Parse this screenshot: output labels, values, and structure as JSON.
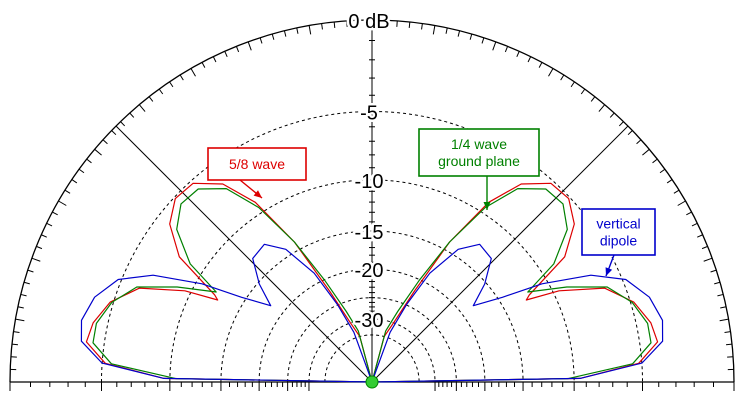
{
  "chart_data": {
    "type": "polar",
    "subtype": "elevation-pattern-half-plane",
    "angle_range_deg": [
      0,
      180
    ],
    "radial_unit": "dB",
    "radial_scale": "log (ARRL-style)",
    "ring_labels": [
      "0 dB",
      "-5",
      "-10",
      "-15",
      "-20",
      "-30"
    ],
    "ring_values_db": [
      0,
      -5,
      -10,
      -15,
      -20,
      -25,
      -30,
      -35
    ],
    "spoke_angles_deg": [
      45,
      90,
      135
    ],
    "series": [
      {
        "name": "5/8 wave",
        "color": "#dd0000",
        "label_lines": [
          "5/8 wave"
        ],
        "points": [
          [
            0,
            -60
          ],
          [
            1,
            -9.5
          ],
          [
            4,
            -5.2
          ],
          [
            8,
            -3.9
          ],
          [
            12,
            -4.1
          ],
          [
            17,
            -4.8
          ],
          [
            22,
            -6.3
          ],
          [
            26,
            -9.5
          ],
          [
            28,
            -12.5
          ],
          [
            29,
            -12.0
          ],
          [
            33,
            -7.8
          ],
          [
            38,
            -5.9
          ],
          [
            43,
            -5.1
          ],
          [
            48,
            -5.2
          ],
          [
            53,
            -6.5
          ],
          [
            57,
            -9.0
          ],
          [
            61,
            -14.0
          ],
          [
            65,
            -22.0
          ],
          [
            70,
            -30.0
          ],
          [
            75,
            -35.0
          ],
          [
            80,
            -60.0
          ],
          [
            90,
            -60.0
          ]
        ]
      },
      {
        "name": "1/4 wave ground plane",
        "color": "#008000",
        "label_lines": [
          "1/4 wave",
          "ground plane"
        ],
        "points": [
          [
            0,
            -60
          ],
          [
            1,
            -10.5
          ],
          [
            4,
            -5.6
          ],
          [
            8,
            -4.3
          ],
          [
            12,
            -4.3
          ],
          [
            17,
            -4.9
          ],
          [
            22,
            -6.1
          ],
          [
            26,
            -8.8
          ],
          [
            30,
            -12.0
          ],
          [
            33,
            -8.8
          ],
          [
            38,
            -6.5
          ],
          [
            43,
            -5.6
          ],
          [
            48,
            -5.7
          ],
          [
            53,
            -6.9
          ],
          [
            57,
            -9.5
          ],
          [
            61,
            -14.0
          ],
          [
            65,
            -20.0
          ],
          [
            70,
            -27.0
          ],
          [
            75,
            -33.0
          ],
          [
            80,
            -60.0
          ],
          [
            90,
            -60.0
          ]
        ]
      },
      {
        "name": "vertical dipole",
        "color": "#0000cc",
        "label_lines": [
          "vertical",
          "dipole"
        ],
        "points": [
          [
            0,
            -60
          ],
          [
            1,
            -9.5
          ],
          [
            4,
            -5.0
          ],
          [
            8,
            -3.6
          ],
          [
            12,
            -3.4
          ],
          [
            17,
            -3.8
          ],
          [
            22,
            -4.8
          ],
          [
            26,
            -6.8
          ],
          [
            30,
            -10.5
          ],
          [
            33,
            -14.5
          ],
          [
            37,
            -18.0
          ],
          [
            41,
            -15.2
          ],
          [
            46,
            -12.8
          ],
          [
            52,
            -12.5
          ],
          [
            57,
            -14.2
          ],
          [
            62,
            -18.5
          ],
          [
            66,
            -25.0
          ],
          [
            70,
            -33.0
          ],
          [
            74,
            -60.0
          ],
          [
            90,
            -60.0
          ]
        ]
      }
    ]
  },
  "callouts": [
    {
      "lines": [
        "5/8 wave"
      ],
      "color": "#dd0000"
    },
    {
      "lines": [
        "1/4 wave",
        "ground plane"
      ],
      "color": "#008000"
    },
    {
      "lines": [
        "vertical",
        "dipole"
      ],
      "color": "#0000cc"
    }
  ]
}
